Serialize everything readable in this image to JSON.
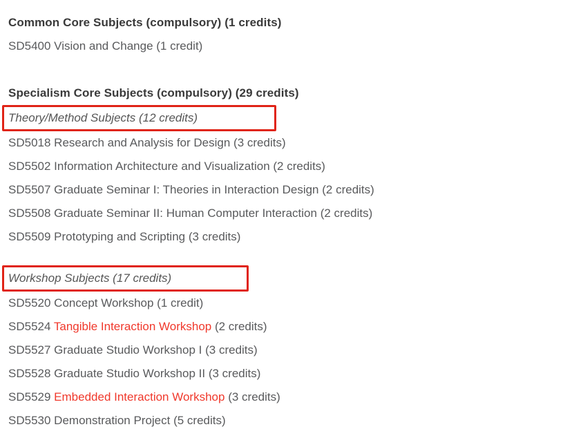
{
  "colors": {
    "background": "#ffffff",
    "heading": "#3a3a3a",
    "body_text": "#595a5c",
    "group_label": "#565656",
    "highlight_red_text": "#f0382b",
    "annotation_box_red": "#e02417"
  },
  "curriculum": {
    "sections": [
      {
        "heading": "Common Core Subjects (compulsory) (1 credits)",
        "groups": [
          {
            "label": null,
            "boxed": false,
            "courses": [
              {
                "code": "SD5400",
                "title": "Vision and Change",
                "credits": "(1 credit)",
                "title_highlighted": false
              }
            ]
          }
        ]
      },
      {
        "heading": "Specialism Core Subjects (compulsory) (29 credits)",
        "groups": [
          {
            "label": "Theory/Method Subjects (12 credits)",
            "boxed": true,
            "courses": [
              {
                "code": "SD5018",
                "title": "Research and Analysis for Design",
                "credits": "(3 credits)",
                "title_highlighted": false
              },
              {
                "code": "SD5502",
                "title": "Information Architecture and Visualization",
                "credits": "(2 credits)",
                "title_highlighted": false
              },
              {
                "code": "SD5507",
                "title": "Graduate Seminar I: Theories in Interaction Design",
                "credits": "(2 credits)",
                "title_highlighted": false
              },
              {
                "code": "SD5508",
                "title": "Graduate Seminar II: Human Computer Interaction",
                "credits": "(2 credits)",
                "title_highlighted": false
              },
              {
                "code": "SD5509",
                "title": "Prototyping and Scripting",
                "credits": "(3 credits)",
                "title_highlighted": false
              }
            ]
          },
          {
            "label": "Workshop Subjects (17 credits)",
            "boxed": true,
            "courses": [
              {
                "code": "SD5520",
                "title": "Concept Workshop",
                "credits": "(1 credit)",
                "title_highlighted": false
              },
              {
                "code": "SD5524",
                "title": "Tangible Interaction Workshop",
                "credits": "(2 credits)",
                "title_highlighted": true
              },
              {
                "code": "SD5527",
                "title": "Graduate Studio Workshop I",
                "credits": "(3 credits)",
                "title_highlighted": false
              },
              {
                "code": "SD5528",
                "title": "Graduate Studio Workshop II",
                "credits": "(3 credits)",
                "title_highlighted": false
              },
              {
                "code": "SD5529",
                "title": "Embedded Interaction Workshop",
                "credits": "(3 credits)",
                "title_highlighted": true
              },
              {
                "code": "SD5530",
                "title": "Demonstration Project",
                "credits": "(5 credits)",
                "title_highlighted": false
              }
            ]
          }
        ]
      }
    ]
  }
}
